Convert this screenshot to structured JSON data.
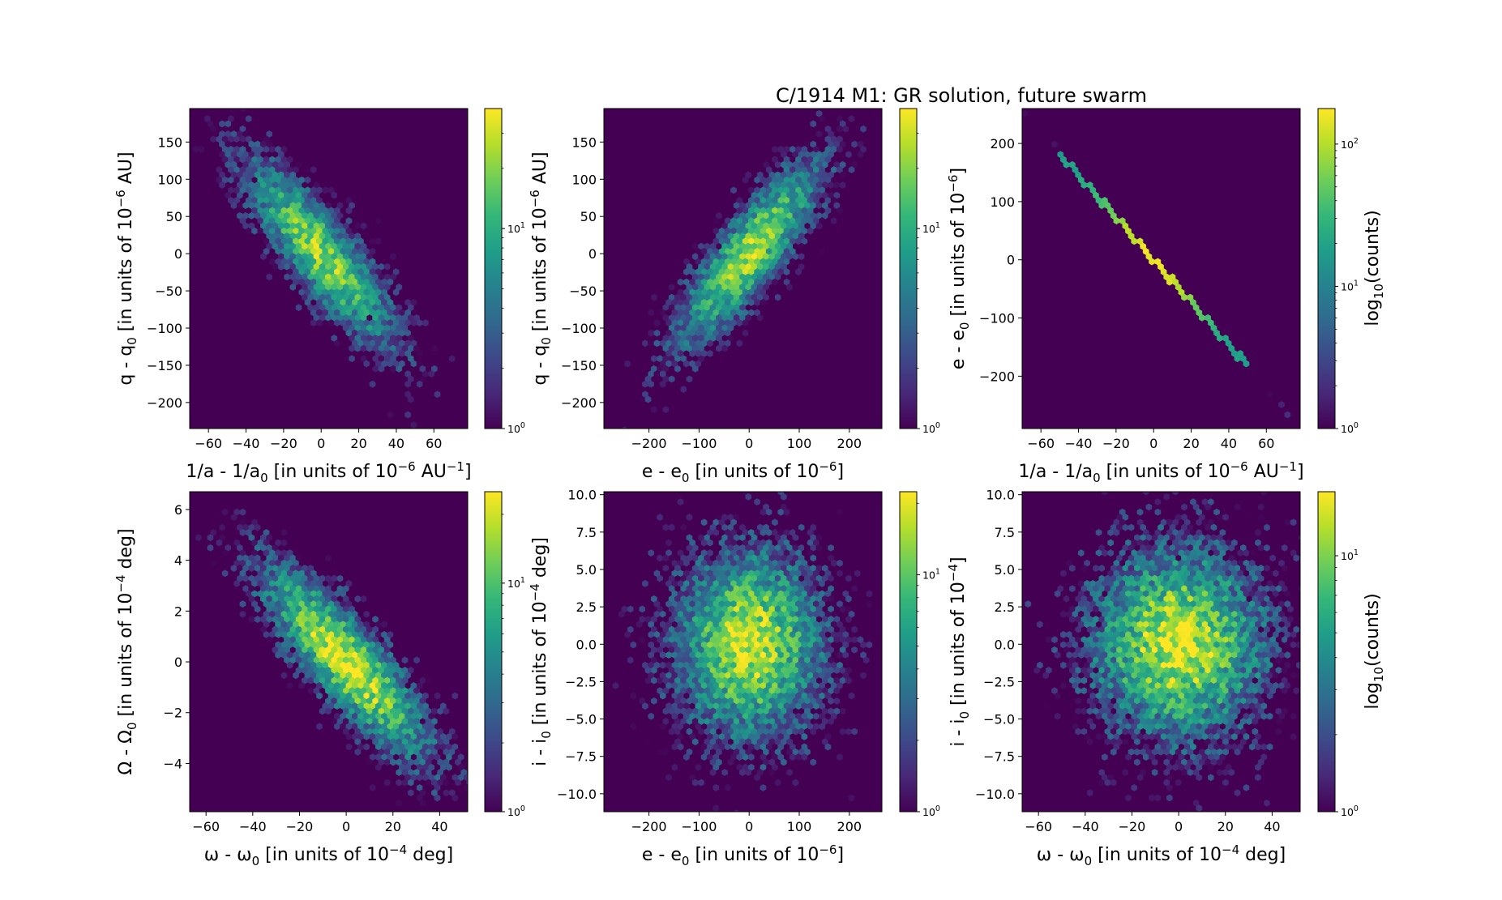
{
  "title": "C/1914 M1:  GR solution, future swarm",
  "colorbar_label": "log10(counts)",
  "colormap": [
    "#440154",
    "#482878",
    "#3e4989",
    "#31688e",
    "#26828e",
    "#1f9e89",
    "#35b779",
    "#6ece58",
    "#b5de2b",
    "#fde725"
  ],
  "chart_data": [
    {
      "type": "heatmap",
      "name": "q vs 1/a",
      "xlabel": "1/a - 1/a₀ [in units of 10⁻⁶ AU⁻¹]",
      "ylabel": "q - q₀ [in units of 10⁻⁶ AU]",
      "xlim": [
        -70,
        78
      ],
      "ylim": [
        -235,
        195
      ],
      "xticks": [
        -60,
        -40,
        -20,
        0,
        20,
        40,
        60
      ],
      "yticks": [
        -200,
        -150,
        -100,
        -50,
        0,
        50,
        100,
        150
      ],
      "xticklabels": [
        "−60",
        "−40",
        "−20",
        "0",
        "20",
        "40",
        "60"
      ],
      "yticklabels": [
        "−200",
        "−150",
        "−100",
        "−50",
        "0",
        "50",
        "100",
        "150"
      ],
      "distribution": {
        "sx": 20,
        "sy": 62,
        "rho": -0.85,
        "peak_log": 1.35
      },
      "colorbar": {
        "max_log": 1.6,
        "ticks": [
          {
            "label": "10",
            "exp": "0",
            "log": 0
          },
          {
            "label": "10",
            "exp": "1",
            "log": 1
          }
        ]
      },
      "colorbar_label_shown": false
    },
    {
      "type": "heatmap",
      "name": "q vs e",
      "xlabel": "e - e₀ [in units of 10⁻⁶]",
      "ylabel": "q - q₀ [in units of 10⁻⁶ AU]",
      "xlim": [
        -290,
        265
      ],
      "ylim": [
        -235,
        195
      ],
      "xticks": [
        -200,
        -100,
        0,
        100,
        200
      ],
      "yticks": [
        -200,
        -150,
        -100,
        -50,
        0,
        50,
        100,
        150
      ],
      "xticklabels": [
        "−200",
        "−100",
        "0",
        "100",
        "200"
      ],
      "yticklabels": [
        "−200",
        "−150",
        "−100",
        "−50",
        "0",
        "50",
        "100",
        "150"
      ],
      "distribution": {
        "sx": 72,
        "sy": 62,
        "rho": 0.85,
        "peak_log": 1.4
      },
      "colorbar": {
        "max_log": 1.6,
        "ticks": [
          {
            "label": "10",
            "exp": "0",
            "log": 0
          },
          {
            "label": "10",
            "exp": "1",
            "log": 1
          }
        ]
      },
      "colorbar_label_shown": false
    },
    {
      "type": "heatmap",
      "name": "e vs 1/a",
      "xlabel": "1/a - 1/a₀ [in units of 10⁻⁶ AU⁻¹]",
      "ylabel": "e - e₀ [in units of 10⁻⁶]",
      "xlim": [
        -70,
        78
      ],
      "ylim": [
        -290,
        260
      ],
      "xticks": [
        -60,
        -40,
        -20,
        0,
        20,
        40,
        60
      ],
      "yticks": [
        -200,
        -100,
        0,
        100,
        200
      ],
      "xticklabels": [
        "−60",
        "−40",
        "−20",
        "0",
        "20",
        "40",
        "60"
      ],
      "yticklabels": [
        "−200",
        "−100",
        "0",
        "100",
        "200"
      ],
      "distribution": {
        "line": true,
        "slope": -3.65,
        "sx": 20,
        "peak_log": 2.25
      },
      "colorbar": {
        "max_log": 2.25,
        "ticks": [
          {
            "label": "10",
            "exp": "0",
            "log": 0
          },
          {
            "label": "10",
            "exp": "1",
            "log": 1
          },
          {
            "label": "10",
            "exp": "2",
            "log": 2
          }
        ]
      },
      "colorbar_label_shown": true
    },
    {
      "type": "heatmap",
      "name": "Omega vs omega",
      "xlabel": "ω - ω₀ [in units of 10⁻⁴ deg]",
      "ylabel": "Ω - Ω₀ [in units of 10⁻⁴ deg]",
      "xlim": [
        -67,
        52
      ],
      "ylim": [
        -5.9,
        6.7
      ],
      "xticks": [
        -60,
        -40,
        -20,
        0,
        20,
        40
      ],
      "yticks": [
        -4,
        -2,
        0,
        2,
        4,
        6
      ],
      "xticklabels": [
        "−60",
        "−40",
        "−20",
        "0",
        "20",
        "40"
      ],
      "yticklabels": [
        "−4",
        "−2",
        "0",
        "2",
        "4",
        "6"
      ],
      "distribution": {
        "sx": 18,
        "sy": 1.9,
        "rho": -0.85,
        "peak_log": 1.35
      },
      "colorbar": {
        "max_log": 1.4,
        "ticks": [
          {
            "label": "10",
            "exp": "0",
            "log": 0
          },
          {
            "label": "10",
            "exp": "1",
            "log": 1
          }
        ]
      },
      "colorbar_label_shown": false
    },
    {
      "type": "heatmap",
      "name": "i vs e",
      "xlabel": "e - e₀ [in units of 10⁻⁶]",
      "ylabel": "i - i₀ [in units of 10⁻⁴ deg]",
      "xlim": [
        -290,
        265
      ],
      "ylim": [
        -11.2,
        10.2
      ],
      "xticks": [
        -200,
        -100,
        0,
        100,
        200
      ],
      "yticks": [
        -10,
        -7.5,
        -5,
        -2.5,
        0,
        2.5,
        5,
        7.5,
        10
      ],
      "xticklabels": [
        "−200",
        "−100",
        "0",
        "100",
        "200"
      ],
      "yticklabels": [
        "−10.0",
        "−7.5",
        "−5.0",
        "−2.5",
        "0.0",
        "2.5",
        "5.0",
        "7.5",
        "10.0"
      ],
      "distribution": {
        "sx": 72,
        "sy": 3.1,
        "rho": 0.0,
        "peak_log": 1.25
      },
      "colorbar": {
        "max_log": 1.35,
        "ticks": [
          {
            "label": "10",
            "exp": "0",
            "log": 0
          },
          {
            "label": "10",
            "exp": "1",
            "log": 1
          }
        ]
      },
      "colorbar_label_shown": false
    },
    {
      "type": "heatmap",
      "name": "i vs omega",
      "xlabel": "ω - ω₀ [in units of 10⁻⁴ deg]",
      "ylabel": "i - i₀ [in units of 10⁻⁴]",
      "xlim": [
        -67,
        52
      ],
      "ylim": [
        -11.2,
        10.2
      ],
      "xticks": [
        -60,
        -40,
        -20,
        0,
        20,
        40
      ],
      "yticks": [
        -10,
        -7.5,
        -5,
        -2.5,
        0,
        2.5,
        5,
        7.5,
        10
      ],
      "xticklabels": [
        "−60",
        "−40",
        "−20",
        "0",
        "20",
        "40"
      ],
      "yticklabels": [
        "−10.0",
        "−7.5",
        "−5.0",
        "−2.5",
        "0.0",
        "2.5",
        "5.0",
        "7.5",
        "10.0"
      ],
      "distribution": {
        "sx": 18,
        "sy": 3.1,
        "rho": 0.0,
        "peak_log": 1.2
      },
      "colorbar": {
        "max_log": 1.25,
        "ticks": [
          {
            "label": "10",
            "exp": "0",
            "log": 0
          },
          {
            "label": "10",
            "exp": "1",
            "log": 1
          }
        ]
      },
      "colorbar_label_shown": true
    }
  ]
}
